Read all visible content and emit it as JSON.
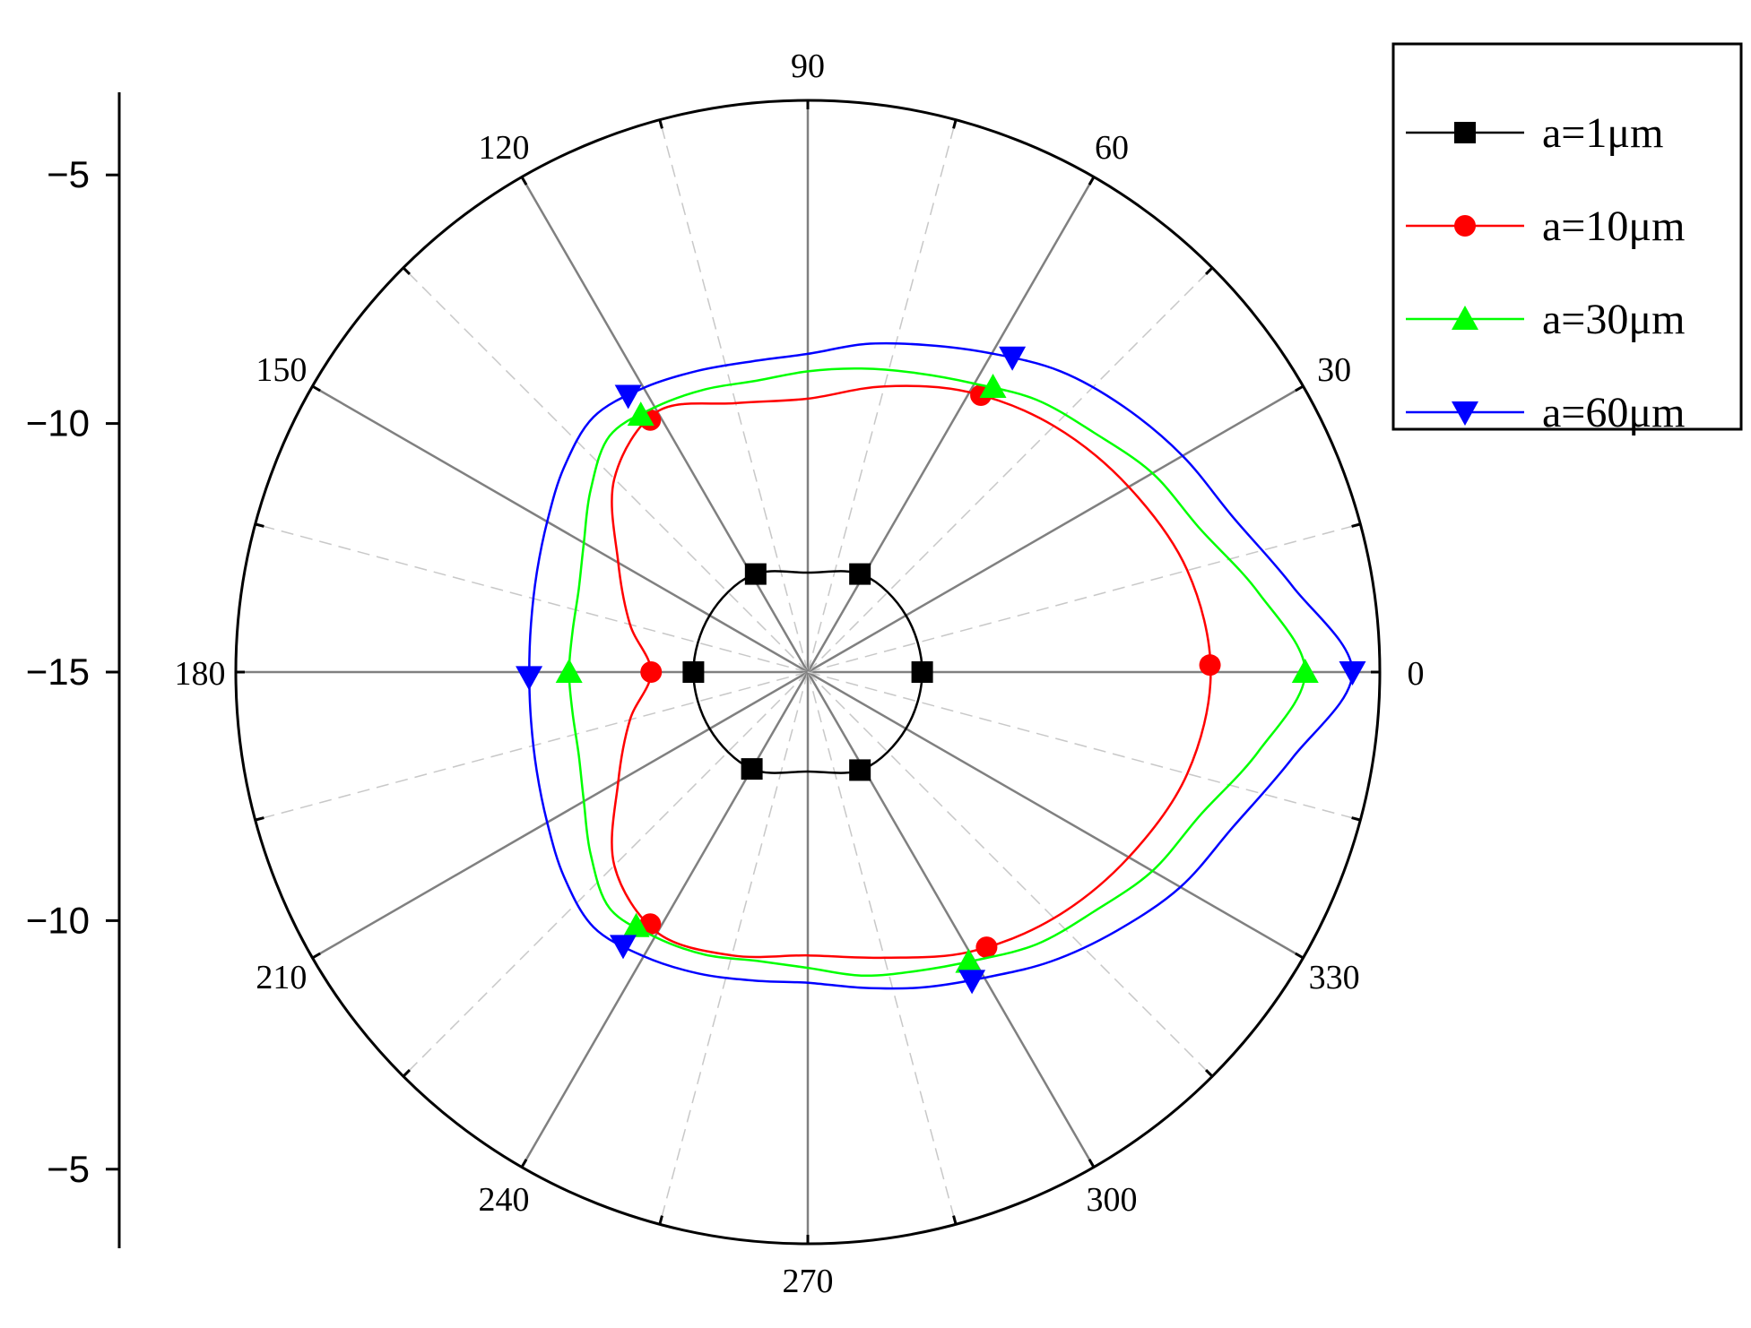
{
  "chart_data": {
    "type": "polar-line",
    "title": "",
    "radial_axis": {
      "ticks": [
        -5,
        -10,
        -15,
        -10,
        -5
      ],
      "range": [
        -15,
        -3.5
      ],
      "center_value": -15
    },
    "angular_axis": {
      "unit": "degrees",
      "tick_labels": [
        "0",
        "30",
        "60",
        "90",
        "120",
        "150",
        "180",
        "210",
        "240",
        "270",
        "300",
        "330"
      ],
      "major_step": 30,
      "minor_step": 15
    },
    "grid": true,
    "legend": {
      "placement": "top-right",
      "entries": [
        "a=1μm",
        "a=10μm",
        "a=30μm",
        "a=60μm"
      ]
    },
    "series": [
      {
        "name": "a=1μm",
        "color": "#000000",
        "marker": "square",
        "angles": [
          0,
          30,
          60,
          90,
          120,
          150,
          180,
          210,
          240,
          270,
          300,
          330,
          360
        ],
        "values": [
          -12.7,
          -12.72,
          -12.75,
          -13.0,
          -12.75,
          -12.72,
          -12.7,
          -12.72,
          -12.75,
          -13.0,
          -12.75,
          -12.72,
          -12.7
        ],
        "marker_angles": [
          0,
          62,
          118,
          180,
          240,
          298
        ]
      },
      {
        "name": "a=10μm",
        "color": "#ff0000",
        "marker": "circle",
        "angles": [
          0,
          15,
          30,
          45,
          60,
          75,
          90,
          105,
          120,
          135,
          150,
          165,
          180,
          195,
          210,
          225,
          240,
          255,
          270,
          285,
          300,
          315,
          330,
          345,
          360
        ],
        "values": [
          -6.9,
          -7.1,
          -7.55,
          -8.0,
          -8.5,
          -9.05,
          -9.5,
          -9.4,
          -8.95,
          -9.5,
          -10.6,
          -11.3,
          -11.85,
          -11.3,
          -10.6,
          -9.5,
          -8.95,
          -9.1,
          -9.3,
          -9.05,
          -8.5,
          -8.0,
          -7.55,
          -7.1,
          -6.9
        ],
        "marker_angles": [
          1,
          58,
          122,
          180,
          238,
          303
        ]
      },
      {
        "name": "a=30μm",
        "color": "#00ff00",
        "marker": "triangle-up",
        "angles": [
          0,
          10,
          20,
          30,
          40,
          50,
          60,
          70,
          80,
          90,
          100,
          110,
          120,
          130,
          140,
          150,
          160,
          170,
          180,
          190,
          200,
          210,
          220,
          230,
          240,
          250,
          260,
          270,
          280,
          290,
          300,
          310,
          320,
          330,
          340,
          350,
          360
        ],
        "values": [
          -5.0,
          -5.8,
          -6.6,
          -7.0,
          -7.5,
          -7.85,
          -8.3,
          -8.6,
          -8.8,
          -8.95,
          -9.05,
          -8.95,
          -8.85,
          -8.8,
          -9.3,
          -9.8,
          -10.1,
          -10.2,
          -10.2,
          -10.2,
          -10.1,
          -9.8,
          -9.3,
          -8.8,
          -8.85,
          -8.95,
          -9.1,
          -9.05,
          -8.8,
          -8.6,
          -8.3,
          -7.85,
          -7.5,
          -7.0,
          -6.6,
          -5.8,
          -5.0
        ],
        "marker_angles": [
          0,
          57,
          123,
          180,
          236,
          299
        ]
      },
      {
        "name": "a=60μm",
        "color": "#0000ff",
        "marker": "triangle-down",
        "angles": [
          0,
          10,
          20,
          30,
          40,
          50,
          60,
          70,
          80,
          90,
          100,
          110,
          120,
          130,
          140,
          150,
          160,
          170,
          180,
          190,
          200,
          210,
          220,
          230,
          240,
          250,
          260,
          270,
          280,
          290,
          300,
          310,
          320,
          330,
          340,
          350,
          360
        ],
        "values": [
          -4.05,
          -5.1,
          -5.9,
          -6.3,
          -6.7,
          -7.1,
          -7.6,
          -8.0,
          -8.3,
          -8.6,
          -8.65,
          -8.55,
          -8.4,
          -8.3,
          -8.6,
          -8.95,
          -9.2,
          -9.35,
          -9.4,
          -9.35,
          -9.2,
          -8.95,
          -8.6,
          -8.3,
          -8.4,
          -8.55,
          -8.7,
          -8.75,
          -8.55,
          -8.25,
          -7.9,
          -7.4,
          -6.9,
          -6.35,
          -5.9,
          -5.1,
          -4.05
        ],
        "marker_angles": [
          0,
          57,
          123,
          181,
          236,
          298
        ]
      }
    ]
  }
}
